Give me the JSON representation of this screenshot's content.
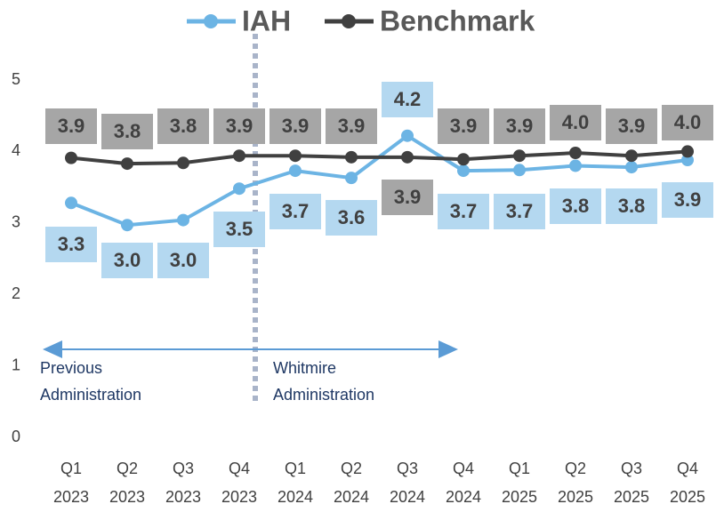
{
  "chart_data": {
    "type": "line",
    "categories": [
      "Q1 2023",
      "Q2 2023",
      "Q3 2023",
      "Q4 2023",
      "Q1 2024",
      "Q2 2024",
      "Q3 2024",
      "Q4 2024",
      "Q1 2025",
      "Q2 2025",
      "Q3 2025",
      "Q4 2025"
    ],
    "series": [
      {
        "name": "IAH",
        "color": "#6cb4e4",
        "label_color": "#b4d8f0",
        "values": [
          3.28,
          2.97,
          3.04,
          3.48,
          3.73,
          3.63,
          4.22,
          3.73,
          3.74,
          3.8,
          3.78,
          3.88
        ],
        "value_labels": [
          "3.3",
          "3.0",
          "3.0",
          "3.5",
          "3.7",
          "3.6",
          "4.2",
          "3.7",
          "3.7",
          "3.8",
          "3.8",
          "3.9"
        ]
      },
      {
        "name": "Benchmark",
        "color": "#404040",
        "label_color": "#a6a6a6",
        "values": [
          3.91,
          3.83,
          3.84,
          3.94,
          3.94,
          3.92,
          3.92,
          3.89,
          3.94,
          3.98,
          3.94,
          4.0
        ],
        "value_labels": [
          "3.9",
          "3.8",
          "3.8",
          "3.9",
          "3.9",
          "3.9",
          "3.9",
          "3.9",
          "3.9",
          "4.0",
          "3.9",
          "4.0"
        ]
      }
    ],
    "ylim": [
      0,
      5
    ],
    "yticks": [
      0,
      1,
      2,
      3,
      4,
      5
    ],
    "grid": false,
    "annotations": [
      {
        "lines": [
          "Previous",
          "Administration"
        ]
      },
      {
        "lines": [
          "Whitmire",
          "Administration"
        ]
      }
    ]
  }
}
